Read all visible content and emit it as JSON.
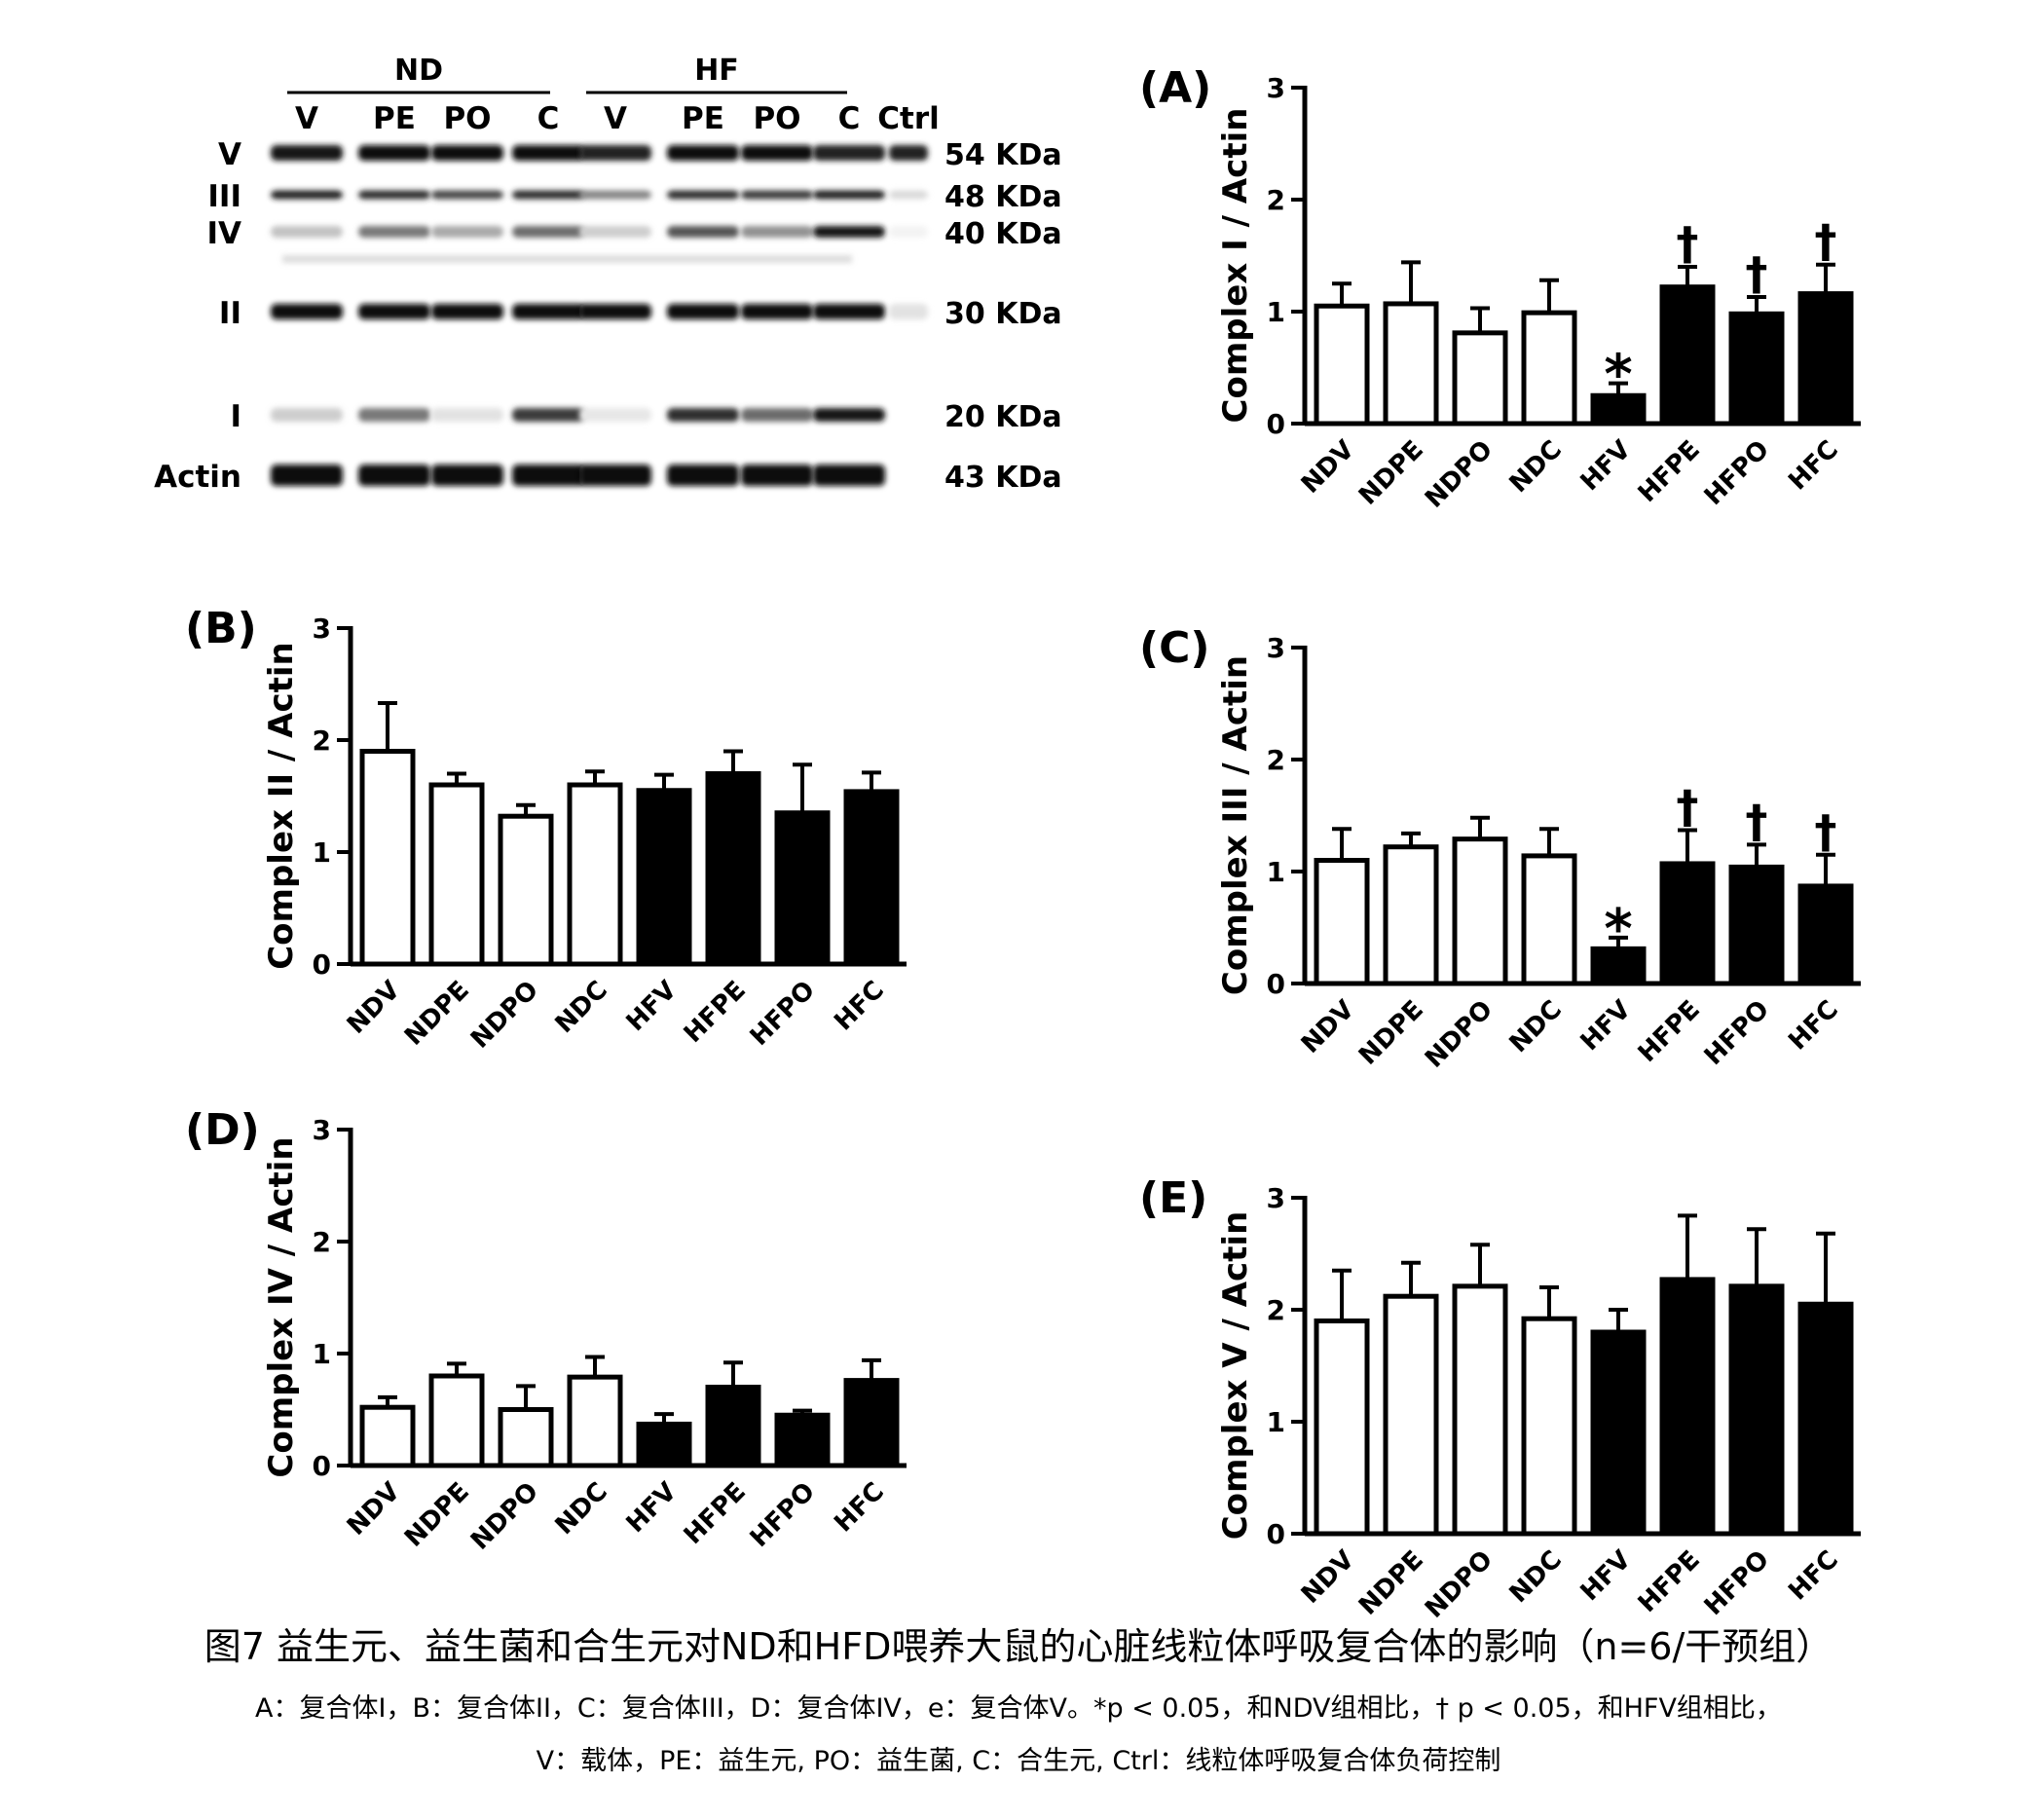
{
  "blot": {
    "groups": [
      "ND",
      "HF"
    ],
    "lanes": [
      "V",
      "PE",
      "PO",
      "C",
      "V",
      "PE",
      "PO",
      "C",
      "Ctrl"
    ],
    "rows": [
      {
        "label": "V",
        "kda": "54 KDa"
      },
      {
        "label": "III",
        "kda": "48 KDa"
      },
      {
        "label": "IV",
        "kda": "40 KDa"
      },
      {
        "label": "II",
        "kda": "30 KDa"
      },
      {
        "label": "I",
        "kda": "20 KDa"
      },
      {
        "label": "Actin",
        "kda": "43 KDa"
      }
    ]
  },
  "colors": {
    "nd_fill": "#ffffff",
    "hf_fill": "#000000",
    "ink": "#000000"
  },
  "chart_data": [
    {
      "panel": "(A)",
      "type": "bar",
      "ylabel": "Complex I / Actin",
      "ylim": [
        0,
        3
      ],
      "yticks": [
        0,
        1,
        2,
        3
      ],
      "categories": [
        "NDV",
        "NDPE",
        "NDPO",
        "NDC",
        "HFV",
        "HFPE",
        "HFPO",
        "HFC"
      ],
      "values": [
        1.05,
        1.07,
        0.81,
        0.99,
        0.25,
        1.22,
        0.98,
        1.16
      ],
      "errors": [
        0.2,
        0.37,
        0.22,
        0.29,
        0.11,
        0.18,
        0.15,
        0.26
      ],
      "marks": [
        "",
        "",
        "",
        "",
        "*",
        "†",
        "†",
        "†"
      ]
    },
    {
      "panel": "(B)",
      "type": "bar",
      "ylabel": "Complex II / Actin",
      "ylim": [
        0,
        3
      ],
      "yticks": [
        0,
        1,
        2,
        3
      ],
      "categories": [
        "NDV",
        "NDPE",
        "NDPO",
        "NDC",
        "HFV",
        "HFPE",
        "HFPO",
        "HFC"
      ],
      "values": [
        1.9,
        1.6,
        1.32,
        1.6,
        1.55,
        1.7,
        1.35,
        1.54
      ],
      "errors": [
        0.43,
        0.1,
        0.1,
        0.12,
        0.14,
        0.2,
        0.43,
        0.17
      ],
      "marks": [
        "",
        "",
        "",
        "",
        "",
        "",
        "",
        ""
      ]
    },
    {
      "panel": "(C)",
      "type": "bar",
      "ylabel": "Complex III / Actin",
      "ylim": [
        0,
        3
      ],
      "yticks": [
        0,
        1,
        2,
        3
      ],
      "categories": [
        "NDV",
        "NDPE",
        "NDPO",
        "NDC",
        "HFV",
        "HFPE",
        "HFPO",
        "HFC"
      ],
      "values": [
        1.1,
        1.22,
        1.29,
        1.14,
        0.31,
        1.07,
        1.04,
        0.87
      ],
      "errors": [
        0.28,
        0.12,
        0.19,
        0.24,
        0.1,
        0.3,
        0.2,
        0.28
      ],
      "marks": [
        "",
        "",
        "",
        "",
        "*",
        "†",
        "†",
        "†"
      ]
    },
    {
      "panel": "(D)",
      "type": "bar",
      "ylabel": "Complex IV / Actin",
      "ylim": [
        0,
        3
      ],
      "yticks": [
        0,
        1,
        2,
        3
      ],
      "categories": [
        "NDV",
        "NDPE",
        "NDPO",
        "NDC",
        "HFV",
        "HFPE",
        "HFPO",
        "HFC"
      ],
      "values": [
        0.52,
        0.8,
        0.5,
        0.79,
        0.37,
        0.7,
        0.45,
        0.76
      ],
      "errors": [
        0.09,
        0.11,
        0.21,
        0.18,
        0.09,
        0.22,
        0.04,
        0.18
      ],
      "marks": [
        "",
        "",
        "",
        "",
        "",
        "",
        "",
        ""
      ]
    },
    {
      "panel": "(E)",
      "type": "bar",
      "ylabel": "Complex V / Actin",
      "ylim": [
        0,
        3
      ],
      "yticks": [
        0,
        1,
        2,
        3
      ],
      "categories": [
        "NDV",
        "NDPE",
        "NDPO",
        "NDC",
        "HFV",
        "HFPE",
        "HFPO",
        "HFC"
      ],
      "values": [
        1.9,
        2.12,
        2.21,
        1.92,
        1.8,
        2.27,
        2.21,
        2.05
      ],
      "errors": [
        0.45,
        0.3,
        0.37,
        0.28,
        0.2,
        0.57,
        0.51,
        0.63
      ],
      "marks": [
        "",
        "",
        "",
        "",
        "",
        "",
        "",
        ""
      ]
    }
  ],
  "caption": {
    "title": "图7 益生元、益生菌和合生元对ND和HFD喂养大鼠的心脏线粒体呼吸复合体的影响（n=6/干预组）",
    "line1": "A：复合体I，B：复合体II，C：复合体III，D：复合体IV，e：复合体V。*p < 0.05，和NDV组相比，† p < 0.05，和HFV组相比，",
    "line2": "V：载体，PE：益生元, PO：益生菌, C：合生元, Ctrl：线粒体呼吸复合体负荷控制"
  }
}
